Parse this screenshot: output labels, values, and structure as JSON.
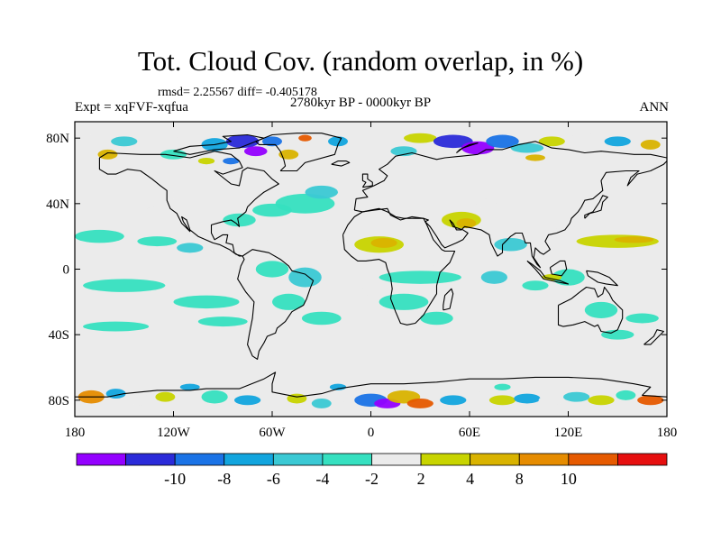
{
  "title": "Tot. Cloud Cov. (random overlap, in %)",
  "stats": "rmsd= 2.25567 diff= -0.405178",
  "left_label": "Expt = xqFVF-xqfua",
  "center_label": "2780kyr BP - 0000kyr BP",
  "right_label": "ANN",
  "axes": {
    "lat_ticks": [
      {
        "value": 80,
        "label": "80N"
      },
      {
        "value": 40,
        "label": "40N"
      },
      {
        "value": 0,
        "label": "0"
      },
      {
        "value": -40,
        "label": "40S"
      },
      {
        "value": -80,
        "label": "80S"
      }
    ],
    "lon_ticks": [
      {
        "value": -180,
        "label": "180"
      },
      {
        "value": -120,
        "label": "120W"
      },
      {
        "value": -60,
        "label": "60W"
      },
      {
        "value": 0,
        "label": "0"
      },
      {
        "value": 60,
        "label": "60E"
      },
      {
        "value": 120,
        "label": "120E"
      },
      {
        "value": 180,
        "label": "180"
      }
    ],
    "lat_range": [
      -90,
      90
    ],
    "lon_range": [
      -180,
      180
    ]
  },
  "colorbar": {
    "colors": [
      "#9400ff",
      "#2b2bd9",
      "#1a73e6",
      "#12a5de",
      "#3bc9d4",
      "#36e0c0",
      "#ebebeb",
      "#c8d400",
      "#d9b300",
      "#e68c00",
      "#e65a00",
      "#e60f0f"
    ],
    "labels": [
      {
        "index": 1,
        "text": "-10"
      },
      {
        "index": 2,
        "text": "-8"
      },
      {
        "index": 3,
        "text": "-6"
      },
      {
        "index": 4,
        "text": "-4"
      },
      {
        "index": 5,
        "text": "-2"
      },
      {
        "index": 6,
        "text": "2"
      },
      {
        "index": 7,
        "text": "4"
      },
      {
        "index": 8,
        "text": "8"
      },
      {
        "index": 9,
        "text": "10"
      }
    ]
  },
  "colors": {
    "background": "#ebebeb",
    "coastline": "#000000"
  }
}
